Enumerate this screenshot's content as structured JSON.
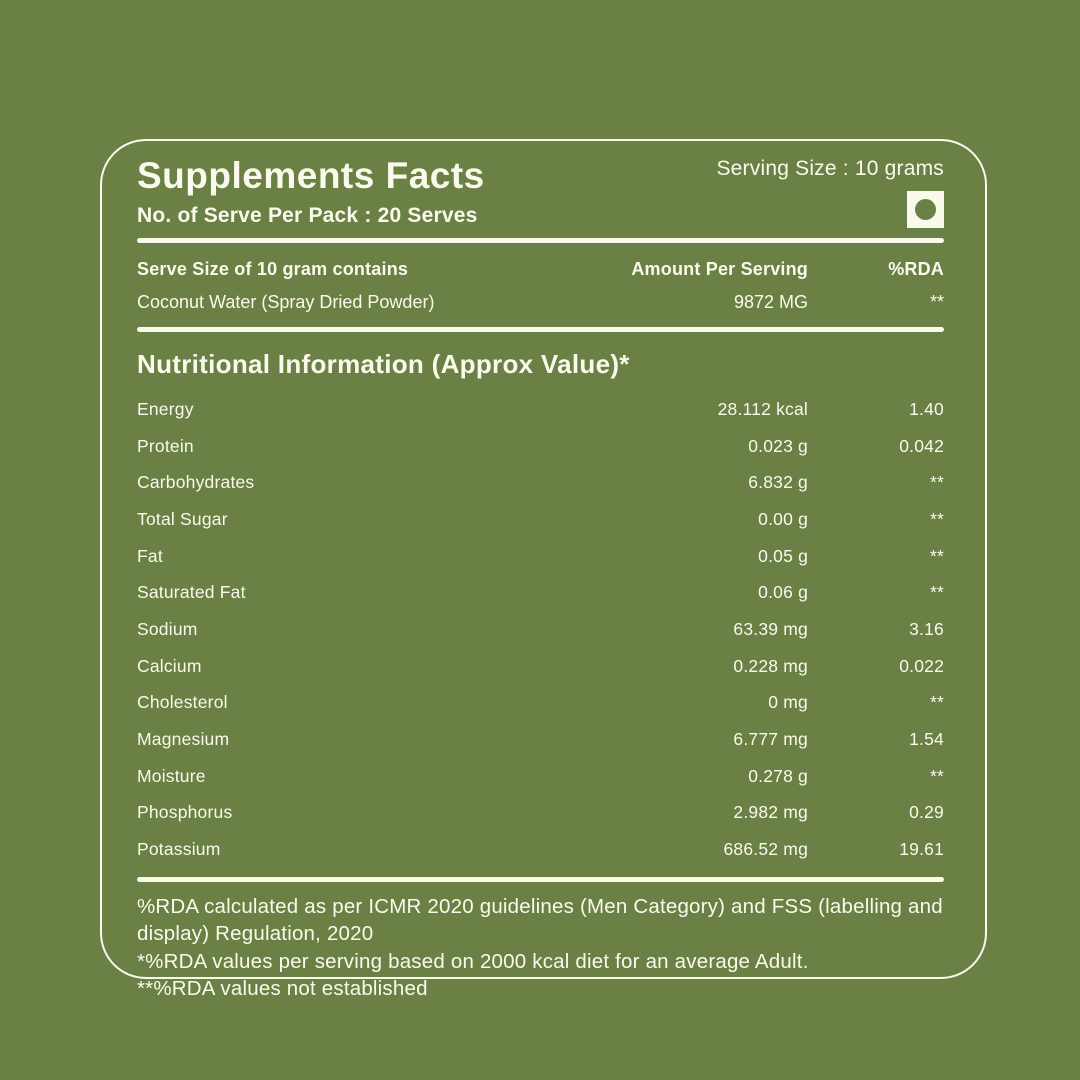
{
  "colors": {
    "background": "#6A8044",
    "foreground": "#FAFAEC"
  },
  "header": {
    "title": "Supplements Facts",
    "serves_per_pack": "No. of Serve Per Pack : 20 Serves",
    "serving_size": "Serving Size : 10 grams",
    "veg_icon": "veg-mark-icon"
  },
  "table": {
    "columns": {
      "col1": "Serve Size of 10 gram contains",
      "col2": "Amount Per Serving",
      "col3": "%RDA"
    },
    "serve_row": {
      "name": "Coconut Water (Spray Dried Powder)",
      "amount": "9872 MG",
      "rda": "**"
    },
    "section_title": "Nutritional Information (Approx Value)*",
    "rows": [
      {
        "name": "Energy",
        "amount": "28.112 kcal",
        "rda": "1.40"
      },
      {
        "name": "Protein",
        "amount": "0.023 g",
        "rda": "0.042"
      },
      {
        "name": "Carbohydrates",
        "amount": "6.832 g",
        "rda": "**"
      },
      {
        "name": "Total Sugar",
        "amount": "0.00 g",
        "rda": "**"
      },
      {
        "name": "Fat",
        "amount": "0.05 g",
        "rda": "**"
      },
      {
        "name": "Saturated Fat",
        "amount": "0.06 g",
        "rda": "**"
      },
      {
        "name": "Sodium",
        "amount": "63.39 mg",
        "rda": "3.16"
      },
      {
        "name": "Calcium",
        "amount": "0.228 mg",
        "rda": "0.022"
      },
      {
        "name": "Cholesterol",
        "amount": "0 mg",
        "rda": "**"
      },
      {
        "name": "Magnesium",
        "amount": "6.777 mg",
        "rda": "1.54"
      },
      {
        "name": "Moisture",
        "amount": "0.278 g",
        "rda": "**"
      },
      {
        "name": "Phosphorus",
        "amount": "2.982 mg",
        "rda": "0.29"
      },
      {
        "name": "Potassium",
        "amount": "686.52 mg",
        "rda": "19.61"
      }
    ]
  },
  "footnotes": {
    "line1": "%RDA calculated as per ICMR 2020 guidelines (Men Category) and FSS (labelling and display) Regulation, 2020",
    "line2": "*%RDA values per serving based on 2000 kcal diet for an average Adult.",
    "line3": "**%RDA values not established"
  }
}
